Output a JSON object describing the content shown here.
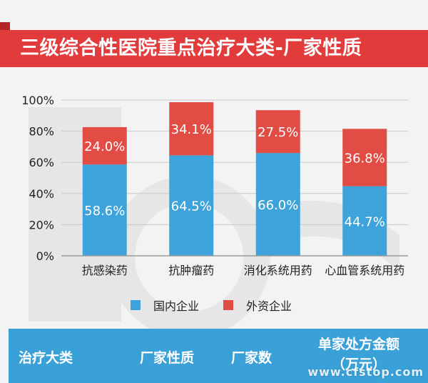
{
  "title": "三级综合性医院重点治疗大类-厂家性质",
  "chart_data": {
    "type": "bar",
    "stacked": true,
    "categories": [
      "抗感染药",
      "抗肿瘤药",
      "消化系统用药",
      "心血管系统用药"
    ],
    "series": [
      {
        "name": "国内企业",
        "values": [
          58.6,
          64.5,
          66.0,
          44.7
        ],
        "labels": [
          "58.6%",
          "64.5%",
          "66.0%",
          "44.7%"
        ],
        "color": "#3fa3db"
      },
      {
        "name": "外资企业",
        "values": [
          24.0,
          34.1,
          27.5,
          36.8
        ],
        "labels": [
          "24.0%",
          "34.1%",
          "27.5%",
          "36.8%"
        ],
        "color": "#e14c45"
      }
    ],
    "yticks": [
      "0%",
      "20%",
      "40%",
      "60%",
      "80%",
      "100%"
    ],
    "ylim": [
      0,
      100
    ],
    "grid": true,
    "legend": "bottom"
  },
  "table": {
    "headers": [
      "治疗大类",
      "厂家性质",
      "厂家数",
      "单家处方金额",
      "（万元）"
    ]
  },
  "watermark": "www.cfstop.com"
}
